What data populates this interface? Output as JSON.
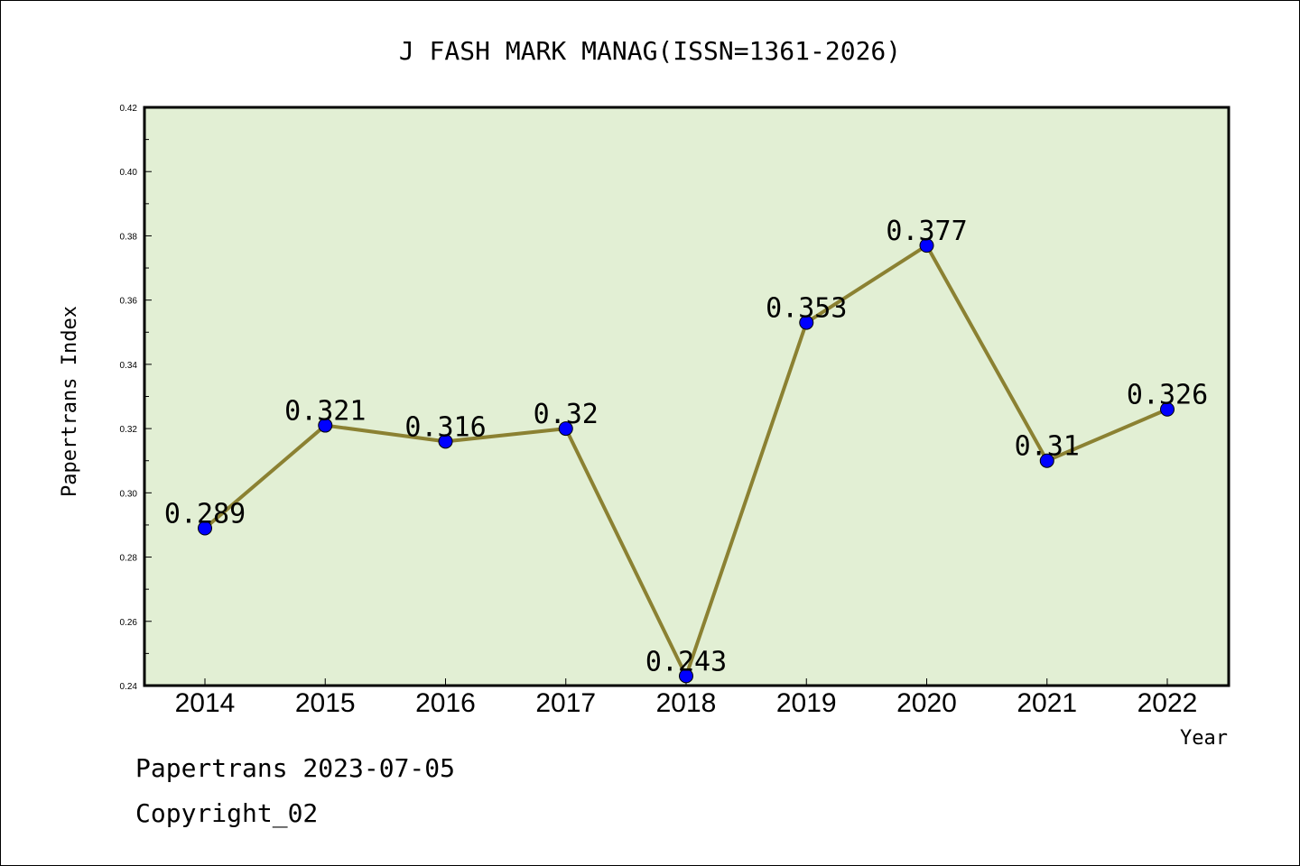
{
  "chart_data": {
    "type": "line",
    "title": "J FASH MARK MANAG(ISSN=1361-2026)",
    "xlabel": "Year",
    "ylabel": "Papertrans Index",
    "x": [
      "2014",
      "2015",
      "2016",
      "2017",
      "2018",
      "2019",
      "2020",
      "2021",
      "2022"
    ],
    "values": [
      0.289,
      0.321,
      0.316,
      0.32,
      0.243,
      0.353,
      0.377,
      0.31,
      0.326
    ],
    "data_labels": [
      "0.289",
      "0.321",
      "0.316",
      "0.32",
      "0.243",
      "0.353",
      "0.377",
      "0.31",
      "0.326"
    ],
    "ylim": [
      0.24,
      0.42
    ],
    "yticks": [
      "0.24",
      "0.26",
      "0.28",
      "0.30",
      "0.32",
      "0.34",
      "0.36",
      "0.38",
      "0.40",
      "0.42"
    ],
    "grid": false,
    "colors": {
      "plot_background": "#e2efd4",
      "line": "#8b8132",
      "marker": "#0000ff"
    }
  },
  "footer": {
    "date_line": "Papertrans 2023-07-05",
    "copyright": "Copyright_02"
  }
}
